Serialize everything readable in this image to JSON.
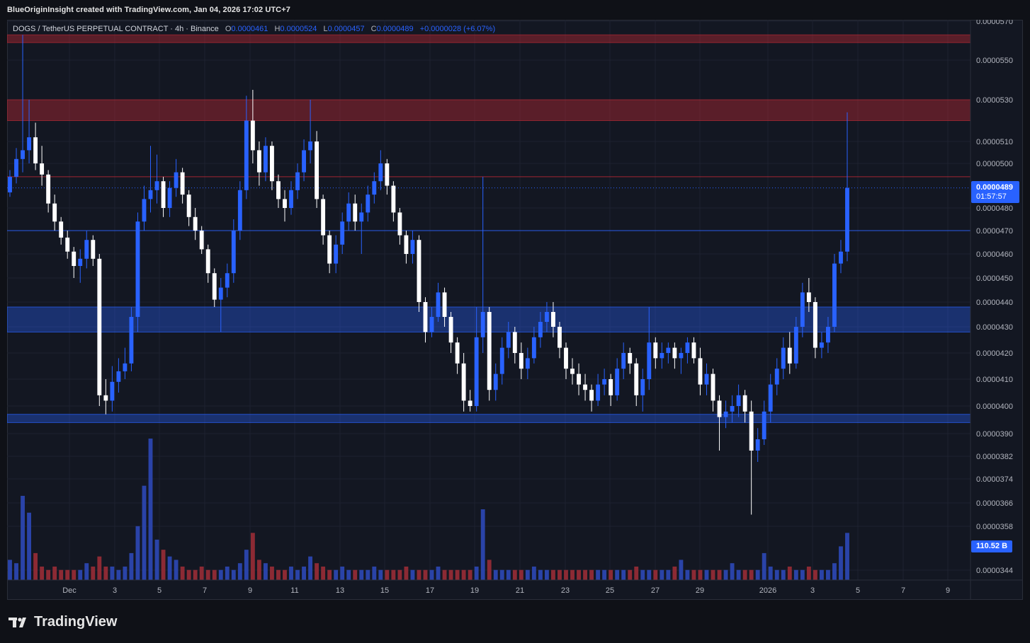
{
  "header": {
    "credit": "BlueOriginInsight created with TradingView.com, Jan 04, 2026 17:02 UTC+7"
  },
  "legend": {
    "symbol": "DOGS / TetherUS PERPETUAL CONTRACT · 4h · Binance",
    "o_label": "O",
    "o": "0.0000461",
    "h_label": "H",
    "h": "0.0000524",
    "l_label": "L",
    "l": "0.0000457",
    "c_label": "C",
    "c": "0.0000489",
    "change": "+0.0000028 (+6.07%)"
  },
  "price_tag": {
    "price": "0.0000489",
    "countdown": "01:57:57"
  },
  "volume_tag": "110.52 B",
  "footer": {
    "brand": "TradingView"
  },
  "colors": {
    "up": "#2962ff",
    "down": "#ffffff",
    "bg": "#131722",
    "resistance": "#b22833",
    "support": "#2962ff",
    "vol_up": "#2a43a8",
    "vol_down": "#8c2a34"
  },
  "chart_data": {
    "type": "candlestick",
    "interval": "4h",
    "y_ticks": [
      "0.0000570",
      "0.0000550",
      "0.0000530",
      "0.0000510",
      "0.0000500",
      "0.0000480",
      "0.0000470",
      "0.0000460",
      "0.0000450",
      "0.0000440",
      "0.0000430",
      "0.0000420",
      "0.0000410",
      "0.0000400",
      "0.0000390",
      "0.0000382",
      "0.0000374",
      "0.0000366",
      "0.0000358",
      "0.0000344"
    ],
    "x_ticks": [
      "Dec",
      "3",
      "5",
      "7",
      "9",
      "11",
      "13",
      "15",
      "17",
      "19",
      "21",
      "23",
      "25",
      "27",
      "29",
      "2026",
      "3",
      "5",
      "7",
      "9"
    ],
    "zones": [
      {
        "type": "resistance",
        "from": 5.59e-05,
        "to": 5.63e-05
      },
      {
        "type": "resistance",
        "from": 5.2e-05,
        "to": 5.3e-05
      },
      {
        "type": "support",
        "from": 4.28e-05,
        "to": 4.38e-05
      },
      {
        "type": "support",
        "from": 3.94e-05,
        "to": 3.97e-05
      }
    ],
    "lines": [
      {
        "type": "horizontal",
        "value": 4.7e-05
      },
      {
        "type": "horizontal",
        "value": 4.94e-05
      }
    ],
    "candles": [
      [
        4.87e-05,
        4.97e-05,
        4.85e-05,
        4.94e-05
      ],
      [
        4.94e-05,
        5.07e-05,
        4.91e-05,
        5.02e-05
      ],
      [
        5.02e-05,
        5.63e-05,
        4.96e-05,
        5.06e-05
      ],
      [
        5.06e-05,
        5.3e-05,
        5e-05,
        5.12e-05
      ],
      [
        5.12e-05,
        5.19e-05,
        4.97e-05,
        5e-05
      ],
      [
        5e-05,
        5.08e-05,
        4.9e-05,
        4.95e-05
      ],
      [
        4.95e-05,
        4.97e-05,
        4.78e-05,
        4.82e-05
      ],
      [
        4.82e-05,
        4.86e-05,
        4.7e-05,
        4.74e-05
      ],
      [
        4.74e-05,
        4.76e-05,
        4.64e-05,
        4.67e-05
      ],
      [
        4.67e-05,
        4.7e-05,
        4.58e-05,
        4.61e-05
      ],
      [
        4.61e-05,
        4.63e-05,
        4.5e-05,
        4.55e-05
      ],
      [
        4.55e-05,
        4.62e-05,
        4.48e-05,
        4.58e-05
      ],
      [
        4.58e-05,
        4.7e-05,
        4.54e-05,
        4.66e-05
      ],
      [
        4.66e-05,
        4.68e-05,
        4.55e-05,
        4.58e-05
      ],
      [
        4.58e-05,
        4.6e-05,
        4e-05,
        4.04e-05
      ],
      [
        4.04e-05,
        4.1e-05,
        3.97e-05,
        4.02e-05
      ],
      [
        4.02e-05,
        4.15e-05,
        3.98e-05,
        4.09e-05
      ],
      [
        4.09e-05,
        4.18e-05,
        4.05e-05,
        4.13e-05
      ],
      [
        4.13e-05,
        4.22e-05,
        4.1e-05,
        4.16e-05
      ],
      [
        4.16e-05,
        4.38e-05,
        4.13e-05,
        4.34e-05
      ],
      [
        4.34e-05,
        4.78e-05,
        4.28e-05,
        4.74e-05
      ],
      [
        4.74e-05,
        4.9e-05,
        4.7e-05,
        4.84e-05
      ],
      [
        4.84e-05,
        5.08e-05,
        4.78e-05,
        4.88e-05
      ],
      [
        4.88e-05,
        5.04e-05,
        4.82e-05,
        4.92e-05
      ],
      [
        4.92e-05,
        4.94e-05,
        4.76e-05,
        4.8e-05
      ],
      [
        4.8e-05,
        4.92e-05,
        4.76e-05,
        4.89e-05
      ],
      [
        4.89e-05,
        5.02e-05,
        4.85e-05,
        4.96e-05
      ],
      [
        4.96e-05,
        4.98e-05,
        4.82e-05,
        4.86e-05
      ],
      [
        4.86e-05,
        4.88e-05,
        4.72e-05,
        4.76e-05
      ],
      [
        4.76e-05,
        4.8e-05,
        4.66e-05,
        4.7e-05
      ],
      [
        4.7e-05,
        4.72e-05,
        4.6e-05,
        4.62e-05
      ],
      [
        4.62e-05,
        4.64e-05,
        4.48e-05,
        4.52e-05
      ],
      [
        4.52e-05,
        4.54e-05,
        4.38e-05,
        4.41e-05
      ],
      [
        4.41e-05,
        4.5e-05,
        4.28e-05,
        4.46e-05
      ],
      [
        4.46e-05,
        4.56e-05,
        4.42e-05,
        4.52e-05
      ],
      [
        4.52e-05,
        4.75e-05,
        4.48e-05,
        4.7e-05
      ],
      [
        4.7e-05,
        4.92e-05,
        4.66e-05,
        4.88e-05
      ],
      [
        4.88e-05,
        5.32e-05,
        4.84e-05,
        5.2e-05
      ],
      [
        5.2e-05,
        5.35e-05,
        5e-05,
        5.06e-05
      ],
      [
        5.06e-05,
        5.1e-05,
        4.9e-05,
        4.96e-05
      ],
      [
        4.96e-05,
        5.12e-05,
        4.92e-05,
        5.08e-05
      ],
      [
        5.08e-05,
        5.1e-05,
        4.88e-05,
        4.92e-05
      ],
      [
        4.92e-05,
        4.95e-05,
        4.8e-05,
        4.84e-05
      ],
      [
        4.84e-05,
        4.88e-05,
        4.74e-05,
        4.8e-05
      ],
      [
        4.8e-05,
        4.92e-05,
        4.77e-05,
        4.88e-05
      ],
      [
        4.88e-05,
        5e-05,
        4.84e-05,
        4.96e-05
      ],
      [
        4.96e-05,
        5.11e-05,
        4.92e-05,
        5.06e-05
      ],
      [
        5.06e-05,
        5.3e-05,
        5e-05,
        5.1e-05
      ],
      [
        5.1e-05,
        5.15e-05,
        4.8e-05,
        4.84e-05
      ],
      [
        4.84e-05,
        4.86e-05,
        4.64e-05,
        4.68e-05
      ],
      [
        4.68e-05,
        4.7e-05,
        4.52e-05,
        4.56e-05
      ],
      [
        4.56e-05,
        4.68e-05,
        4.52e-05,
        4.64e-05
      ],
      [
        4.64e-05,
        4.78e-05,
        4.6e-05,
        4.74e-05
      ],
      [
        4.74e-05,
        4.87e-05,
        4.7e-05,
        4.82e-05
      ],
      [
        4.82e-05,
        4.86e-05,
        4.7e-05,
        4.74e-05
      ],
      [
        4.74e-05,
        4.82e-05,
        4.6e-05,
        4.78e-05
      ],
      [
        4.78e-05,
        4.9e-05,
        4.74e-05,
        4.86e-05
      ],
      [
        4.86e-05,
        4.96e-05,
        4.82e-05,
        4.92e-05
      ],
      [
        4.92e-05,
        5.06e-05,
        4.88e-05,
        5e-05
      ],
      [
        5e-05,
        5.02e-05,
        4.86e-05,
        4.9e-05
      ],
      [
        4.9e-05,
        4.92e-05,
        4.74e-05,
        4.78e-05
      ],
      [
        4.78e-05,
        4.8e-05,
        4.64e-05,
        4.68e-05
      ],
      [
        4.68e-05,
        4.7e-05,
        4.56e-05,
        4.6e-05
      ],
      [
        4.6e-05,
        4.7e-05,
        4.56e-05,
        4.66e-05
      ],
      [
        4.66e-05,
        4.68e-05,
        4.36e-05,
        4.4e-05
      ],
      [
        4.4e-05,
        4.42e-05,
        4.24e-05,
        4.28e-05
      ],
      [
        4.28e-05,
        4.38e-05,
        4.26e-05,
        4.34e-05
      ],
      [
        4.34e-05,
        4.48e-05,
        4.32e-05,
        4.44e-05
      ],
      [
        4.44e-05,
        4.46e-05,
        4.3e-05,
        4.34e-05
      ],
      [
        4.34e-05,
        4.36e-05,
        4.2e-05,
        4.24e-05
      ],
      [
        4.24e-05,
        4.26e-05,
        4.12e-05,
        4.16e-05
      ],
      [
        4.16e-05,
        4.2e-05,
        3.98e-05,
        4.02e-05
      ],
      [
        4.02e-05,
        4.06e-05,
        3.98e-05,
        4e-05
      ],
      [
        4e-05,
        4.38e-05,
        3.98e-05,
        4.26e-05
      ],
      [
        4.26e-05,
        4.94e-05,
        4.2e-05,
        4.36e-05
      ],
      [
        4.36e-05,
        4.38e-05,
        4.02e-05,
        4.06e-05
      ],
      [
        4.06e-05,
        4.16e-05,
        4.02e-05,
        4.12e-05
      ],
      [
        4.12e-05,
        4.26e-05,
        4.08e-05,
        4.22e-05
      ],
      [
        4.22e-05,
        4.32e-05,
        4.18e-05,
        4.28e-05
      ],
      [
        4.28e-05,
        4.3e-05,
        4.16e-05,
        4.2e-05
      ],
      [
        4.2e-05,
        4.24e-05,
        4.1e-05,
        4.14e-05
      ],
      [
        4.14e-05,
        4.22e-05,
        4.1e-05,
        4.18e-05
      ],
      [
        4.18e-05,
        4.3e-05,
        4.16e-05,
        4.26e-05
      ],
      [
        4.26e-05,
        4.36e-05,
        4.22e-05,
        4.32e-05
      ],
      [
        4.32e-05,
        4.4e-05,
        4.28e-05,
        4.36e-05
      ],
      [
        4.36e-05,
        4.4e-05,
        4.26e-05,
        4.3e-05
      ],
      [
        4.3e-05,
        4.32e-05,
        4.18e-05,
        4.22e-05
      ],
      [
        4.22e-05,
        4.24e-05,
        4.1e-05,
        4.14e-05
      ],
      [
        4.14e-05,
        4.18e-05,
        4.08e-05,
        4.12e-05
      ],
      [
        4.12e-05,
        4.16e-05,
        4.04e-05,
        4.08e-05
      ],
      [
        4.08e-05,
        4.12e-05,
        4.02e-05,
        4.06e-05
      ],
      [
        4.06e-05,
        4.08e-05,
        3.98e-05,
        4.02e-05
      ],
      [
        4.02e-05,
        4.12e-05,
        4e-05,
        4.08e-05
      ],
      [
        4.08e-05,
        4.14e-05,
        4.04e-05,
        4.1e-05
      ],
      [
        4.1e-05,
        4.12e-05,
        4e-05,
        4.04e-05
      ],
      [
        4.04e-05,
        4.18e-05,
        4.02e-05,
        4.14e-05
      ],
      [
        4.14e-05,
        4.24e-05,
        4.1e-05,
        4.2e-05
      ],
      [
        4.2e-05,
        4.22e-05,
        4.12e-05,
        4.16e-05
      ],
      [
        4.16e-05,
        4.18e-05,
        4e-05,
        4.04e-05
      ],
      [
        4.04e-05,
        4.14e-05,
        3.98e-05,
        4.1e-05
      ],
      [
        4.1e-05,
        4.38e-05,
        4.06e-05,
        4.24e-05
      ],
      [
        4.24e-05,
        4.26e-05,
        4.14e-05,
        4.18e-05
      ],
      [
        4.18e-05,
        4.24e-05,
        4.14e-05,
        4.2e-05
      ],
      [
        4.2e-05,
        4.24e-05,
        4.16e-05,
        4.22e-05
      ],
      [
        4.22e-05,
        4.24e-05,
        4.14e-05,
        4.18e-05
      ],
      [
        4.18e-05,
        4.22e-05,
        4.12e-05,
        4.2e-05
      ],
      [
        4.2e-05,
        4.26e-05,
        4.16e-05,
        4.24e-05
      ],
      [
        4.24e-05,
        4.26e-05,
        4.16e-05,
        4.18e-05
      ],
      [
        4.18e-05,
        4.22e-05,
        4.04e-05,
        4.08e-05
      ],
      [
        4.08e-05,
        4.16e-05,
        4.04e-05,
        4.12e-05
      ],
      [
        4.12e-05,
        4.14e-05,
        3.98e-05,
        4.02e-05
      ],
      [
        4.02e-05,
        4.04e-05,
        3.84e-05,
        3.96e-05
      ],
      [
        3.96e-05,
        4.02e-05,
        3.92e-05,
        3.98e-05
      ],
      [
        3.98e-05,
        4.04e-05,
        3.94e-05,
        4e-05
      ],
      [
        4e-05,
        4.08e-05,
        3.96e-05,
        4.04e-05
      ],
      [
        4.04e-05,
        4.06e-05,
        3.94e-05,
        3.98e-05
      ],
      [
        3.98e-05,
        4.02e-05,
        3.62e-05,
        3.84e-05
      ],
      [
        3.84e-05,
        3.92e-05,
        3.8e-05,
        3.88e-05
      ],
      [
        3.88e-05,
        4.02e-05,
        3.86e-05,
        3.98e-05
      ],
      [
        3.98e-05,
        4.12e-05,
        3.94e-05,
        4.08e-05
      ],
      [
        4.08e-05,
        4.18e-05,
        4.04e-05,
        4.14e-05
      ],
      [
        4.14e-05,
        4.26e-05,
        4.1e-05,
        4.22e-05
      ],
      [
        4.22e-05,
        4.28e-05,
        4.12e-05,
        4.16e-05
      ],
      [
        4.16e-05,
        4.34e-05,
        4.14e-05,
        4.3e-05
      ],
      [
        4.3e-05,
        4.48e-05,
        4.26e-05,
        4.44e-05
      ],
      [
        4.44e-05,
        4.5e-05,
        4.36e-05,
        4.4e-05
      ],
      [
        4.4e-05,
        4.42e-05,
        4.18e-05,
        4.22e-05
      ],
      [
        4.22e-05,
        4.28e-05,
        4.18e-05,
        4.24e-05
      ],
      [
        4.24e-05,
        4.34e-05,
        4.2e-05,
        4.3e-05
      ],
      [
        4.3e-05,
        4.6e-05,
        4.28e-05,
        4.56e-05
      ],
      [
        4.56e-05,
        4.66e-05,
        4.52e-05,
        4.61e-05
      ],
      [
        4.61e-05,
        5.24e-05,
        4.57e-05,
        4.89e-05
      ]
    ],
    "volume": [
      6,
      5,
      25,
      20,
      8,
      4,
      3,
      4,
      3,
      3,
      3,
      3,
      5,
      4,
      7,
      4,
      4,
      3,
      4,
      8,
      16,
      28,
      42,
      12,
      9,
      7,
      6,
      4,
      3,
      3,
      4,
      3,
      3,
      3,
      4,
      3,
      5,
      9,
      14,
      6,
      5,
      4,
      3,
      3,
      4,
      3,
      4,
      7,
      5,
      4,
      3,
      3,
      4,
      3,
      3,
      3,
      3,
      4,
      3,
      3,
      3,
      3,
      4,
      3,
      3,
      3,
      3,
      4,
      3,
      3,
      3,
      3,
      3,
      4,
      21,
      6,
      3,
      3,
      3,
      3,
      3,
      3,
      4,
      3,
      3,
      3,
      3,
      3,
      3,
      3,
      3,
      3,
      3,
      3,
      3,
      3,
      3,
      3,
      4,
      3,
      3,
      3,
      3,
      3,
      4,
      6,
      3,
      3,
      3,
      3,
      3,
      3,
      3,
      5,
      3,
      3,
      3,
      3,
      8,
      4,
      3,
      3,
      4,
      3,
      3,
      4,
      3,
      3,
      3,
      5,
      10,
      14
    ]
  }
}
